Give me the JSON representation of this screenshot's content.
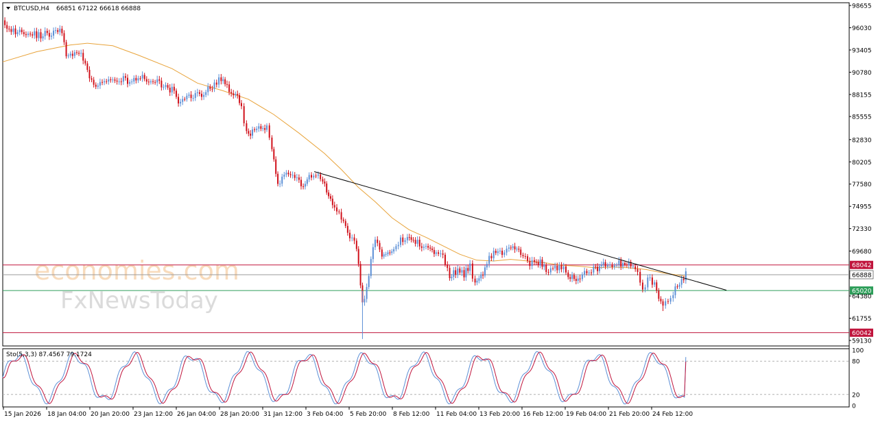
{
  "header": {
    "symbol": "BTCUSD,H4",
    "ohlc": "66851 67122 66618 66888",
    "menu_arrow": "triangle-down-icon"
  },
  "watermark": {
    "line1": "economies.com",
    "line2": "FxNewsToday"
  },
  "indicator": {
    "label": "Sto(5,3,3) 87.4567 79.1724"
  },
  "colors": {
    "bull": "#5b8fd6",
    "bear": "#d0101a",
    "ma": "#e8a33a",
    "resistance": "#c0143c",
    "support": "#2e9e5a",
    "current": "#9a9a9a",
    "stoch_main": "#5b8fd6",
    "stoch_signal": "#c0143c"
  },
  "chart_data": {
    "type": "candlestick",
    "timeframe": "H4",
    "price_axis_ticks": [
      "98655",
      "96030",
      "93405",
      "90780",
      "88155",
      "85555",
      "82830",
      "80205",
      "77580",
      "74955",
      "72330",
      "69680",
      "64380",
      "61755",
      "59130"
    ],
    "y_range": [
      58480,
      98980
    ],
    "time_axis_ticks": [
      "15 Jan 2026",
      "18 Jan 04:00",
      "20 Jan 20:00",
      "23 Jan 12:00",
      "26 Jan 04:00",
      "28 Jan 20:00",
      "31 Jan 12:00",
      "3 Feb 04:00",
      "5 Feb 20:00",
      "8 Feb 12:00",
      "11 Feb 04:00",
      "13 Feb 20:00",
      "16 Feb 12:00",
      "19 Feb 04:00",
      "21 Feb 20:00",
      "24 Feb 12:00"
    ],
    "horizontal_levels": [
      {
        "name": "resistance",
        "value": 68042,
        "label": "68042"
      },
      {
        "name": "current",
        "value": 66888,
        "label": "66888"
      },
      {
        "name": "support",
        "value": 65020,
        "label": "65020"
      },
      {
        "name": "low",
        "value": 60042,
        "label": "60042"
      }
    ],
    "trendline": {
      "from": [
        0.368,
        79050
      ],
      "to": [
        0.855,
        65060
      ]
    },
    "close_path": [
      [
        0.0,
        96900
      ],
      [
        0.01,
        95800
      ],
      [
        0.02,
        95500
      ],
      [
        0.03,
        95300
      ],
      [
        0.045,
        95200
      ],
      [
        0.06,
        95400
      ],
      [
        0.07,
        95600
      ],
      [
        0.075,
        92600
      ],
      [
        0.085,
        93200
      ],
      [
        0.095,
        92600
      ],
      [
        0.1,
        91000
      ],
      [
        0.11,
        89000
      ],
      [
        0.12,
        89500
      ],
      [
        0.13,
        89800
      ],
      [
        0.14,
        90100
      ],
      [
        0.15,
        89700
      ],
      [
        0.16,
        90200
      ],
      [
        0.17,
        89900
      ],
      [
        0.18,
        89600
      ],
      [
        0.19,
        89200
      ],
      [
        0.2,
        88700
      ],
      [
        0.21,
        87000
      ],
      [
        0.22,
        88200
      ],
      [
        0.23,
        88000
      ],
      [
        0.24,
        88500
      ],
      [
        0.25,
        89300
      ],
      [
        0.258,
        90100
      ],
      [
        0.265,
        88900
      ],
      [
        0.275,
        88300
      ],
      [
        0.282,
        86500
      ],
      [
        0.288,
        83600
      ],
      [
        0.295,
        83800
      ],
      [
        0.305,
        84200
      ],
      [
        0.312,
        84500
      ],
      [
        0.318,
        81800
      ],
      [
        0.325,
        77700
      ],
      [
        0.335,
        78800
      ],
      [
        0.345,
        78100
      ],
      [
        0.355,
        77500
      ],
      [
        0.362,
        78500
      ],
      [
        0.37,
        78700
      ],
      [
        0.378,
        78000
      ],
      [
        0.385,
        76000
      ],
      [
        0.392,
        75200
      ],
      [
        0.4,
        73800
      ],
      [
        0.41,
        71500
      ],
      [
        0.418,
        70000
      ],
      [
        0.425,
        63800
      ],
      [
        0.43,
        65000
      ],
      [
        0.435,
        68600
      ],
      [
        0.44,
        70800
      ],
      [
        0.448,
        69200
      ],
      [
        0.455,
        69500
      ],
      [
        0.462,
        69800
      ],
      [
        0.47,
        71200
      ],
      [
        0.478,
        71000
      ],
      [
        0.485,
        70800
      ],
      [
        0.495,
        70500
      ],
      [
        0.505,
        69800
      ],
      [
        0.512,
        69500
      ],
      [
        0.52,
        68800
      ],
      [
        0.528,
        66600
      ],
      [
        0.535,
        67300
      ],
      [
        0.545,
        67000
      ],
      [
        0.552,
        67800
      ],
      [
        0.558,
        65700
      ],
      [
        0.565,
        66600
      ],
      [
        0.572,
        68300
      ],
      [
        0.58,
        69400
      ],
      [
        0.59,
        69500
      ],
      [
        0.598,
        69800
      ],
      [
        0.605,
        70300
      ],
      [
        0.612,
        69400
      ],
      [
        0.62,
        68500
      ],
      [
        0.628,
        68100
      ],
      [
        0.635,
        68300
      ],
      [
        0.642,
        67300
      ],
      [
        0.65,
        67600
      ],
      [
        0.66,
        67800
      ],
      [
        0.668,
        66700
      ],
      [
        0.675,
        66400
      ],
      [
        0.682,
        66800
      ],
      [
        0.69,
        67100
      ],
      [
        0.698,
        67600
      ],
      [
        0.705,
        67800
      ],
      [
        0.712,
        68000
      ],
      [
        0.72,
        67700
      ],
      [
        0.728,
        68200
      ],
      [
        0.735,
        68100
      ],
      [
        0.742,
        67900
      ],
      [
        0.75,
        67600
      ],
      [
        0.756,
        64900
      ],
      [
        0.762,
        66300
      ],
      [
        0.77,
        65900
      ],
      [
        0.775,
        63900
      ],
      [
        0.78,
        63300
      ],
      [
        0.786,
        63600
      ],
      [
        0.792,
        64900
      ],
      [
        0.797,
        65500
      ],
      [
        0.802,
        66000
      ],
      [
        0.807,
        66888
      ]
    ],
    "ma_path": [
      [
        0.0,
        92000
      ],
      [
        0.04,
        93200
      ],
      [
        0.08,
        94000
      ],
      [
        0.1,
        94200
      ],
      [
        0.13,
        93900
      ],
      [
        0.16,
        92800
      ],
      [
        0.2,
        91200
      ],
      [
        0.23,
        89500
      ],
      [
        0.26,
        88600
      ],
      [
        0.29,
        87600
      ],
      [
        0.32,
        85800
      ],
      [
        0.35,
        83600
      ],
      [
        0.38,
        81200
      ],
      [
        0.4,
        79300
      ],
      [
        0.42,
        77200
      ],
      [
        0.44,
        75500
      ],
      [
        0.46,
        73600
      ],
      [
        0.48,
        72200
      ],
      [
        0.5,
        71300
      ],
      [
        0.52,
        70300
      ],
      [
        0.54,
        69300
      ],
      [
        0.56,
        68600
      ],
      [
        0.58,
        68500
      ],
      [
        0.6,
        68700
      ],
      [
        0.62,
        68500
      ],
      [
        0.64,
        68300
      ],
      [
        0.66,
        68000
      ],
      [
        0.68,
        67900
      ],
      [
        0.7,
        67700
      ],
      [
        0.72,
        67800
      ],
      [
        0.74,
        67700
      ],
      [
        0.76,
        67500
      ],
      [
        0.78,
        67100
      ],
      [
        0.807,
        66700
      ]
    ],
    "stochastic": {
      "overbought": 80,
      "oversold": 20,
      "main_value": 87.4567,
      "signal_value": 79.1724,
      "scale_ticks": [
        "100",
        "80",
        "20",
        "0"
      ]
    }
  }
}
